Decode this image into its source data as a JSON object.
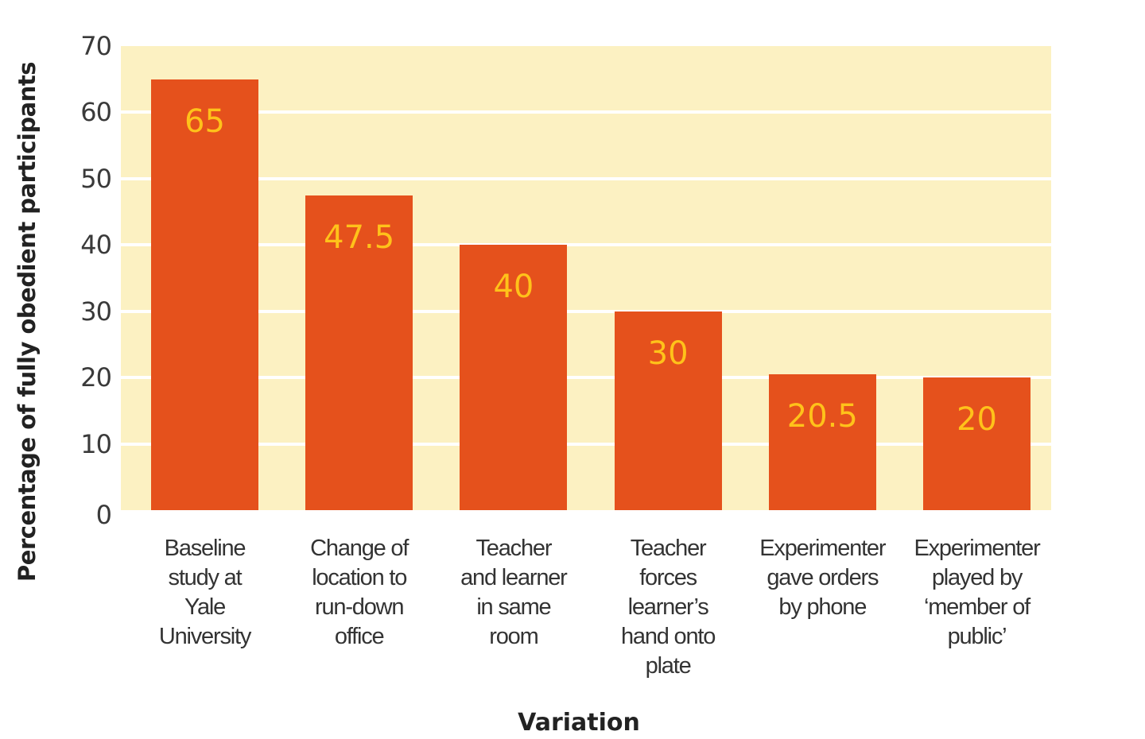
{
  "chart_data": {
    "type": "bar",
    "title": "",
    "xlabel": "Variation",
    "ylabel": "Percentage of fully obedient participants",
    "ylim": [
      0,
      70
    ],
    "yticks": [
      0,
      10,
      20,
      30,
      40,
      50,
      60,
      70
    ],
    "grid": true,
    "legend": null,
    "categories": [
      "Baseline\nstudy at\nYale\nUniversity",
      "Change of\nlocation to\nrun-down\noffice",
      "Teacher\nand learner\nin same\nroom",
      "Teacher\nforces\nlearner’s\nhand onto\nplate",
      "Experimenter\ngave orders\nby phone",
      "Experimenter\nplayed by\n‘member of\npublic’"
    ],
    "values": [
      65,
      47.5,
      40,
      30,
      20.5,
      20
    ],
    "value_labels": [
      "65",
      "47.5",
      "40",
      "30",
      "20.5",
      "20"
    ],
    "colors": {
      "bar": "#e5511c",
      "bar_label": "#ffc21a",
      "plot_background": "#fcf1c2",
      "gridline": "#ffffff"
    }
  }
}
